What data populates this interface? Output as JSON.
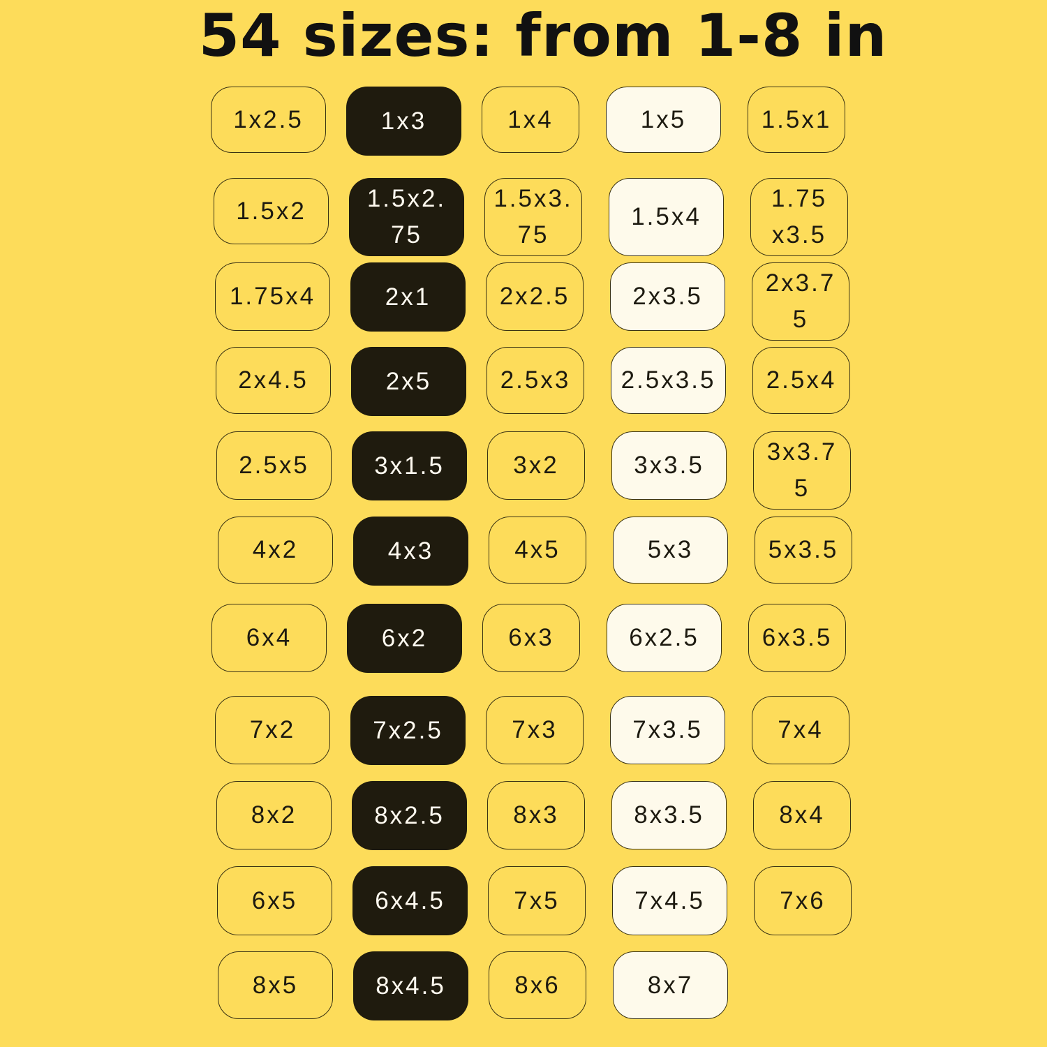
{
  "title": "54 sizes: from 1-8 in",
  "colors": {
    "background": "#fddc5a",
    "dark_chip": "#1f1b0e",
    "cream_chip": "#fefaeb",
    "outline": "#3a3213"
  },
  "column_styles": [
    "outline",
    "dark",
    "outline",
    "cream",
    "outline"
  ],
  "rows": [
    [
      "1x2.5",
      "1x3",
      "1x4",
      "1x5",
      "1.5x1"
    ],
    [
      "1.5x2",
      "1.5x2.75",
      "1.5x3.75",
      "1.5x4",
      "1.75x3.5"
    ],
    [
      "1.75x4",
      "2x1",
      "2x2.5",
      "2x3.5",
      "2x3.75"
    ],
    [
      "2x4.5",
      "2x5",
      "2.5x3",
      "2.5x3.5",
      "2.5x4"
    ],
    [
      "2.5x5",
      "3x1.5",
      "3x2",
      "3x3.5",
      "3x3.75"
    ],
    [
      "4x2",
      "4x3",
      "4x5",
      "5x3",
      "5x3.5"
    ],
    [
      "6x4",
      "6x2",
      "6x3",
      "6x2.5",
      "6x3.5"
    ],
    [
      "7x2",
      "7x2.5",
      "7x3",
      "7x3.5",
      "7x4"
    ],
    [
      "8x2",
      "8x2.5",
      "8x3",
      "8x3.5",
      "8x4"
    ],
    [
      "6x5",
      "6x4.5",
      "7x5",
      "7x4.5",
      "7x6"
    ],
    [
      "8x5",
      "8x4.5",
      "8x6",
      "8x7"
    ]
  ]
}
